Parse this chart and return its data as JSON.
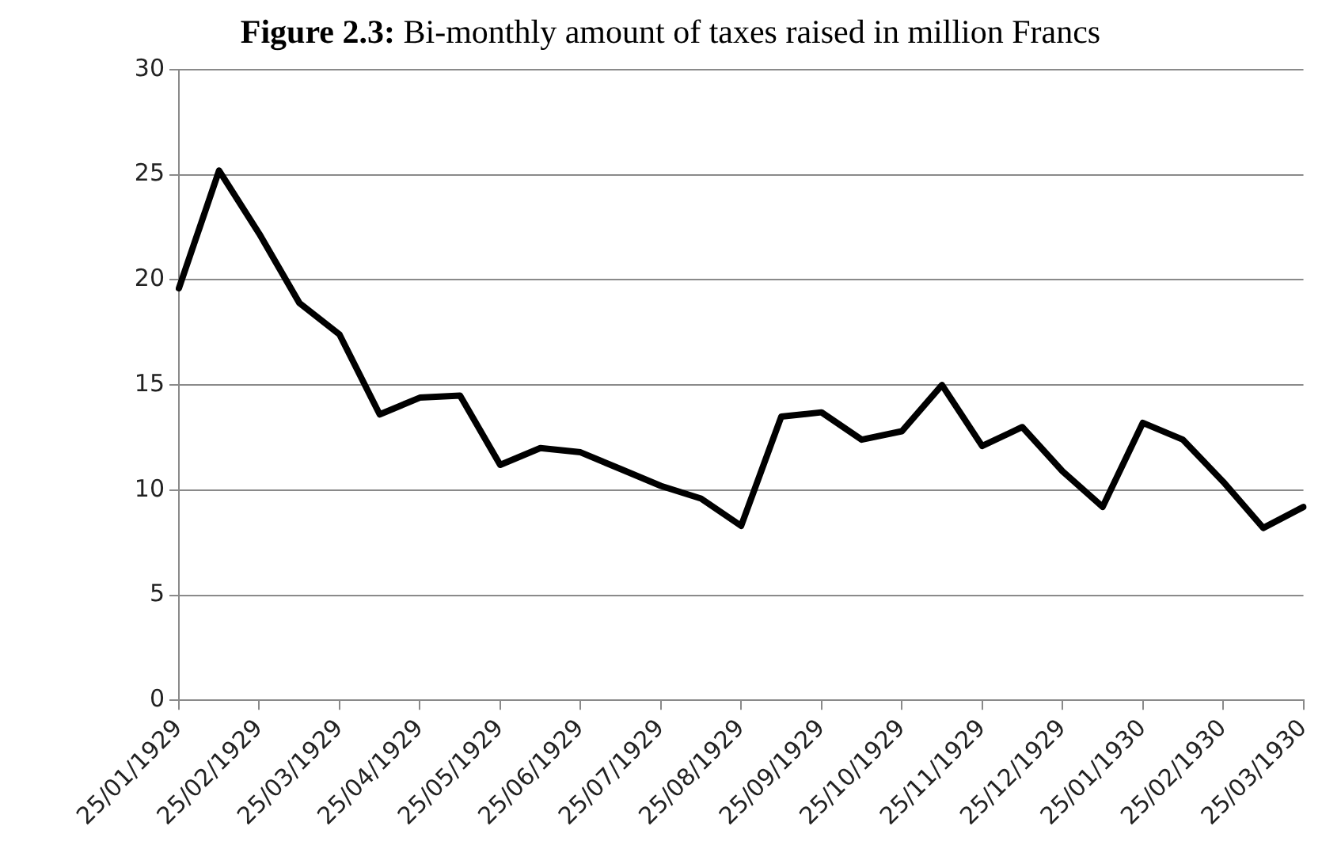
{
  "chart_data": {
    "type": "line",
    "title": "Figure 2.3: Bi-monthly amount of taxes raised in million Francs",
    "categories": [
      "25/01/1929",
      null,
      "25/02/1929",
      null,
      "25/03/1929",
      null,
      "25/04/1929",
      null,
      "25/05/1929",
      null,
      "25/06/1929",
      null,
      "25/07/1929",
      null,
      "25/08/1929",
      null,
      "25/09/1929",
      null,
      "25/10/1929",
      null,
      "25/11/1929",
      null,
      "25/12/1929",
      null,
      "25/01/1930",
      null,
      "25/02/1930",
      null,
      "25/03/1930"
    ],
    "series": [
      {
        "color": "#000000",
        "values": [
          19.6,
          25.2,
          22.2,
          18.9,
          17.4,
          13.6,
          14.4,
          14.5,
          11.2,
          12.0,
          11.8,
          11.0,
          10.2,
          9.6,
          8.3,
          13.5,
          13.7,
          12.4,
          12.8,
          15.0,
          12.1,
          13.0,
          10.9,
          9.2,
          13.2,
          12.4,
          10.4,
          8.2,
          9.2
        ]
      }
    ],
    "ylim": [
      0,
      30
    ],
    "yticks": [
      0,
      5,
      10,
      15,
      20,
      25,
      30
    ],
    "grid": "y",
    "legend": false,
    "marker": "none",
    "line_style": "solid"
  }
}
